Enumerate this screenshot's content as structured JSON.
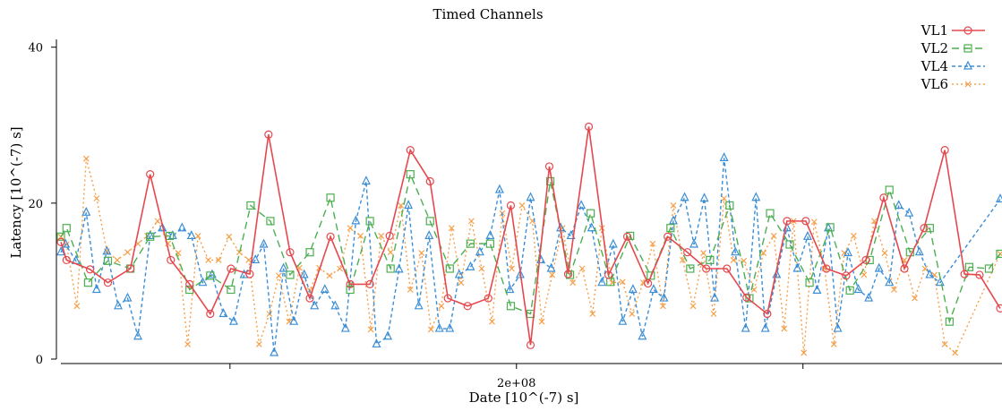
{
  "chart_data": {
    "type": "line",
    "title": "Timed Channels",
    "xlabel": "Date  [10^(-7) s]",
    "ylabel": "Latency  [10^(-7) s]",
    "ylim": [
      0,
      41
    ],
    "xlim": [
      0,
      100
    ],
    "y_ticks": [
      0,
      20,
      40
    ],
    "x_ticks": [
      {
        "pos": 18,
        "label": ""
      },
      {
        "pos": 48.5,
        "label": "2e+08"
      },
      {
        "pos": 79,
        "label": ""
      }
    ],
    "grid": false,
    "legend_position": "top-right",
    "series": [
      {
        "name": "VL1",
        "color": "#e5484d",
        "dash": "solid",
        "marker": "circle",
        "points": [
          [
            0,
            15
          ],
          [
            0.6,
            12.7
          ],
          [
            3.1,
            11.5
          ],
          [
            5.0,
            9.8
          ],
          [
            7.4,
            11.6
          ],
          [
            9.5,
            23.7
          ],
          [
            11.7,
            12.7
          ],
          [
            13.7,
            9.6
          ],
          [
            15.9,
            5.8
          ],
          [
            18.1,
            11.6
          ],
          [
            20.1,
            10.9
          ],
          [
            22.1,
            28.8
          ],
          [
            24.4,
            13.7
          ],
          [
            26.5,
            7.8
          ],
          [
            28.7,
            15.7
          ],
          [
            30.8,
            9.6
          ],
          [
            32.9,
            9.6
          ],
          [
            35.0,
            15.8
          ],
          [
            37.2,
            26.8
          ],
          [
            39.3,
            22.8
          ],
          [
            41.2,
            7.8
          ],
          [
            43.3,
            6.8
          ],
          [
            45.5,
            7.8
          ],
          [
            47.9,
            19.7
          ],
          [
            50.0,
            1.8
          ],
          [
            52.0,
            24.7
          ],
          [
            54.0,
            10.9
          ],
          [
            56.2,
            29.8
          ],
          [
            58.3,
            10.8
          ],
          [
            60.3,
            15.7
          ],
          [
            62.5,
            9.7
          ],
          [
            64.6,
            15.7
          ],
          [
            66.7,
            13.7
          ],
          [
            68.7,
            11.6
          ],
          [
            70.9,
            11.6
          ],
          [
            73.0,
            7.9
          ],
          [
            75.2,
            5.8
          ],
          [
            77.3,
            17.7
          ],
          [
            79.3,
            17.7
          ],
          [
            81.5,
            11.6
          ],
          [
            83.6,
            10.7
          ],
          [
            85.7,
            12.7
          ],
          [
            87.6,
            20.7
          ],
          [
            89.8,
            11.6
          ],
          [
            91.9,
            16.8
          ],
          [
            94.1,
            26.8
          ],
          [
            96.2,
            10.9
          ],
          [
            97.8,
            10.8
          ],
          [
            100,
            6.5
          ]
        ]
      },
      {
        "name": "VL2",
        "color": "#4caf50",
        "dash": "8,5",
        "marker": "square",
        "points": [
          [
            0,
            15.7
          ],
          [
            0.6,
            16.8
          ],
          [
            2.9,
            9.8
          ],
          [
            5.0,
            12.6
          ],
          [
            7.4,
            11.6
          ],
          [
            9.5,
            15.7
          ],
          [
            11.6,
            15.8
          ],
          [
            13.7,
            8.9
          ],
          [
            15.9,
            10.7
          ],
          [
            18.1,
            8.9
          ],
          [
            20.2,
            19.7
          ],
          [
            22.3,
            17.7
          ],
          [
            24.4,
            10.8
          ],
          [
            26.5,
            13.7
          ],
          [
            28.7,
            20.7
          ],
          [
            30.8,
            8.9
          ],
          [
            32.9,
            17.7
          ],
          [
            35.1,
            11.6
          ],
          [
            37.2,
            23.7
          ],
          [
            39.3,
            17.7
          ],
          [
            41.4,
            11.6
          ],
          [
            43.6,
            14.8
          ],
          [
            45.7,
            14.8
          ],
          [
            47.9,
            6.8
          ],
          [
            50.0,
            5.8
          ],
          [
            52.1,
            22.8
          ],
          [
            54.2,
            10.8
          ],
          [
            56.4,
            18.7
          ],
          [
            58.5,
            9.9
          ],
          [
            60.6,
            15.8
          ],
          [
            62.8,
            10.7
          ],
          [
            64.9,
            16.8
          ],
          [
            67.0,
            11.6
          ],
          [
            69.1,
            12.7
          ],
          [
            71.2,
            19.7
          ],
          [
            73.3,
            7.8
          ],
          [
            75.5,
            18.7
          ],
          [
            77.6,
            14.7
          ],
          [
            79.7,
            9.8
          ],
          [
            81.9,
            16.9
          ],
          [
            84.0,
            8.8
          ],
          [
            86.1,
            12.7
          ],
          [
            88.2,
            21.7
          ],
          [
            90.4,
            13.7
          ],
          [
            92.5,
            16.8
          ],
          [
            94.6,
            4.8
          ],
          [
            96.7,
            11.8
          ],
          [
            98.8,
            11.6
          ],
          [
            100,
            13.5
          ]
        ]
      },
      {
        "name": "VL4",
        "color": "#3b8ed6",
        "dash": "4,3",
        "marker": "triangle",
        "points": [
          [
            0,
            13.7
          ],
          [
            0.5,
            14.7
          ],
          [
            1.6,
            12.6
          ],
          [
            2.7,
            18.8
          ],
          [
            3.8,
            8.9
          ],
          [
            4.9,
            13.8
          ],
          [
            6.1,
            6.8
          ],
          [
            7.1,
            7.8
          ],
          [
            8.2,
            2.9
          ],
          [
            9.5,
            15.8
          ],
          [
            10.8,
            16.8
          ],
          [
            11.9,
            15.8
          ],
          [
            12.9,
            16.8
          ],
          [
            13.9,
            15.8
          ],
          [
            15.1,
            9.8
          ],
          [
            16.1,
            10.8
          ],
          [
            17.3,
            5.8
          ],
          [
            18.4,
            4.8
          ],
          [
            19.5,
            10.8
          ],
          [
            20.7,
            12.7
          ],
          [
            21.6,
            14.7
          ],
          [
            22.7,
            0.8
          ],
          [
            23.7,
            11.6
          ],
          [
            24.8,
            4.8
          ],
          [
            25.9,
            10.8
          ],
          [
            27.0,
            6.8
          ],
          [
            28.1,
            8.9
          ],
          [
            29.2,
            6.8
          ],
          [
            30.3,
            3.9
          ],
          [
            31.4,
            17.7
          ],
          [
            32.5,
            22.8
          ],
          [
            33.6,
            1.9
          ],
          [
            34.8,
            2.9
          ],
          [
            36.0,
            11.5
          ],
          [
            37.0,
            19.7
          ],
          [
            38.1,
            6.8
          ],
          [
            39.2,
            15.8
          ],
          [
            40.3,
            3.9
          ],
          [
            41.4,
            3.9
          ],
          [
            42.4,
            10.8
          ],
          [
            43.6,
            11.8
          ],
          [
            44.6,
            13.7
          ],
          [
            45.7,
            15.8
          ],
          [
            46.7,
            21.7
          ],
          [
            47.8,
            8.9
          ],
          [
            48.9,
            10.8
          ],
          [
            50.0,
            20.7
          ],
          [
            51.1,
            12.7
          ],
          [
            52.2,
            11.6
          ],
          [
            53.2,
            16.8
          ],
          [
            54.3,
            15.8
          ],
          [
            55.4,
            19.7
          ],
          [
            56.5,
            16.8
          ],
          [
            57.6,
            9.8
          ],
          [
            58.8,
            14.7
          ],
          [
            59.8,
            4.8
          ],
          [
            60.9,
            8.9
          ],
          [
            61.9,
            2.9
          ],
          [
            63.1,
            8.9
          ],
          [
            64.2,
            7.8
          ],
          [
            65.2,
            17.7
          ],
          [
            66.4,
            20.7
          ],
          [
            67.4,
            14.7
          ],
          [
            68.5,
            20.6
          ],
          [
            69.6,
            7.8
          ],
          [
            70.6,
            25.8
          ],
          [
            71.8,
            13.7
          ],
          [
            72.9,
            3.9
          ],
          [
            74.0,
            20.7
          ],
          [
            75.0,
            3.9
          ],
          [
            76.2,
            10.8
          ],
          [
            77.3,
            16.8
          ],
          [
            78.4,
            11.6
          ],
          [
            79.5,
            15.7
          ],
          [
            80.5,
            8.8
          ],
          [
            81.7,
            16.8
          ],
          [
            82.7,
            3.9
          ],
          [
            83.8,
            13.6
          ],
          [
            84.9,
            8.9
          ],
          [
            86.0,
            7.8
          ],
          [
            87.1,
            11.6
          ],
          [
            88.2,
            9.8
          ],
          [
            89.2,
            19.7
          ],
          [
            90.3,
            18.7
          ],
          [
            91.4,
            13.7
          ],
          [
            92.5,
            10.8
          ],
          [
            93.6,
            9.8
          ],
          [
            100,
            20.5
          ]
        ]
      },
      {
        "name": "VL6",
        "color": "#f5a04a",
        "dash": "2,3",
        "marker": "x",
        "points": [
          [
            0,
            15.7
          ],
          [
            0.6,
            14.7
          ],
          [
            1.7,
            6.8
          ],
          [
            2.7,
            25.7
          ],
          [
            3.8,
            20.6
          ],
          [
            4.9,
            13.8
          ],
          [
            6.0,
            12.7
          ],
          [
            7.1,
            13.7
          ],
          [
            8.2,
            14.8
          ],
          [
            9.2,
            15.8
          ],
          [
            10.3,
            17.7
          ],
          [
            11.4,
            14.8
          ],
          [
            12.5,
            13.6
          ],
          [
            13.5,
            1.9
          ],
          [
            14.6,
            15.8
          ],
          [
            15.7,
            12.7
          ],
          [
            16.8,
            12.7
          ],
          [
            17.9,
            15.7
          ],
          [
            19.0,
            13.7
          ],
          [
            20.0,
            12.7
          ],
          [
            21.1,
            1.9
          ],
          [
            22.2,
            5.8
          ],
          [
            23.2,
            10.7
          ],
          [
            24.3,
            4.8
          ],
          [
            25.4,
            11.7
          ],
          [
            26.5,
            8.8
          ],
          [
            27.5,
            11.7
          ],
          [
            28.6,
            10.7
          ],
          [
            29.7,
            11.6
          ],
          [
            30.8,
            16.8
          ],
          [
            31.9,
            15.8
          ],
          [
            33.0,
            3.8
          ],
          [
            34.1,
            15.8
          ],
          [
            35.1,
            13.7
          ],
          [
            36.2,
            19.7
          ],
          [
            37.2,
            8.9
          ],
          [
            38.4,
            13.6
          ],
          [
            39.4,
            3.8
          ],
          [
            40.5,
            6.8
          ],
          [
            41.6,
            16.8
          ],
          [
            42.6,
            9.8
          ],
          [
            43.7,
            17.7
          ],
          [
            44.8,
            11.6
          ],
          [
            45.9,
            4.8
          ],
          [
            47.0,
            18.7
          ],
          [
            48.0,
            11.6
          ],
          [
            49.1,
            19.7
          ],
          [
            50.2,
            17.7
          ],
          [
            51.2,
            4.8
          ],
          [
            52.3,
            10.8
          ],
          [
            53.4,
            16.8
          ],
          [
            54.5,
            9.8
          ],
          [
            55.5,
            11.6
          ],
          [
            56.6,
            5.8
          ],
          [
            57.6,
            16.8
          ],
          [
            58.7,
            9.8
          ],
          [
            59.8,
            9.9
          ],
          [
            60.8,
            5.8
          ],
          [
            62.0,
            9.8
          ],
          [
            63.0,
            14.8
          ],
          [
            64.1,
            6.8
          ],
          [
            65.2,
            19.7
          ],
          [
            66.2,
            12.7
          ],
          [
            67.3,
            6.8
          ],
          [
            68.4,
            13.6
          ],
          [
            69.5,
            5.8
          ],
          [
            70.6,
            20.6
          ],
          [
            71.6,
            12.7
          ],
          [
            72.7,
            12.6
          ],
          [
            73.8,
            8.9
          ],
          [
            74.8,
            13.6
          ],
          [
            75.9,
            15.8
          ],
          [
            77.0,
            3.9
          ],
          [
            78.0,
            17.7
          ],
          [
            79.1,
            0.8
          ],
          [
            80.2,
            17.6
          ],
          [
            81.3,
            11.6
          ],
          [
            82.3,
            1.9
          ],
          [
            83.4,
            13.6
          ],
          [
            84.4,
            15.8
          ],
          [
            85.5,
            10.8
          ],
          [
            86.6,
            17.7
          ],
          [
            87.7,
            13.6
          ],
          [
            88.7,
            8.9
          ],
          [
            89.8,
            12.7
          ],
          [
            90.9,
            7.8
          ],
          [
            92.0,
            11.6
          ],
          [
            93.0,
            10.8
          ],
          [
            94.1,
            1.9
          ],
          [
            95.2,
            0.8
          ],
          [
            100,
            13.5
          ]
        ]
      }
    ]
  }
}
